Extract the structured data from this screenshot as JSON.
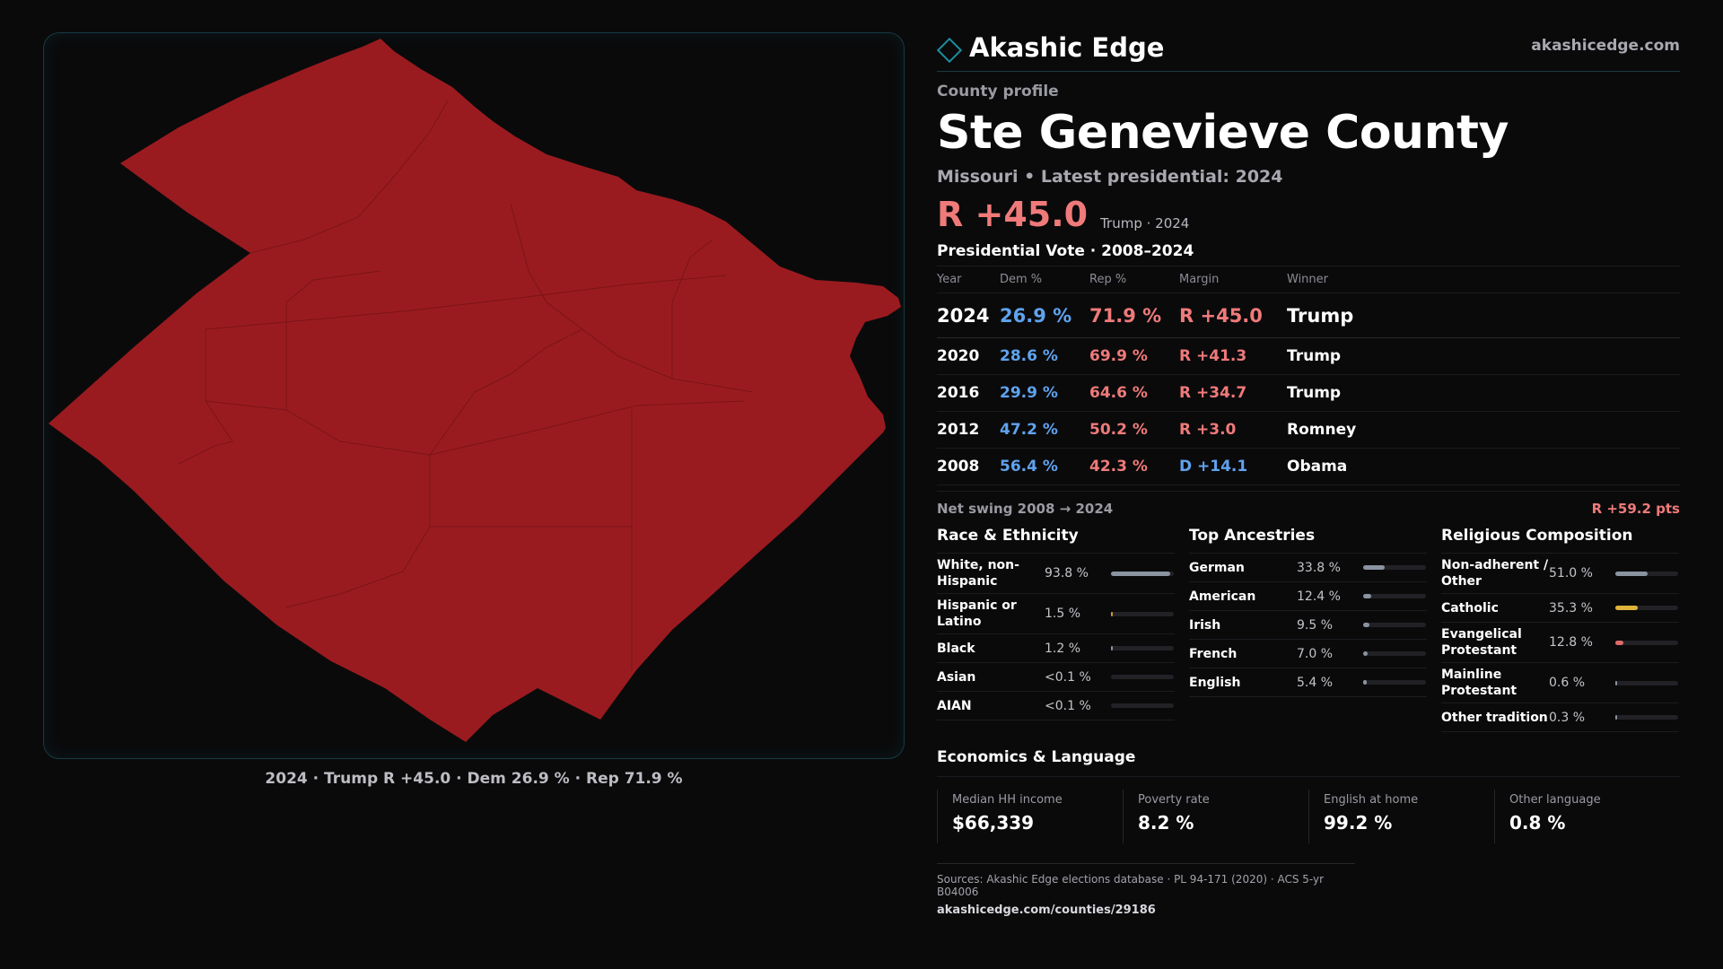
{
  "brand": {
    "name": "Akashic Edge",
    "url": "akashicedge.com",
    "icon": "diamond-icon"
  },
  "profile": {
    "eyebrow": "County profile",
    "title": "Ste Genevieve County",
    "subtitle": "Missouri • Latest presidential: 2024",
    "margin": "R +45.0",
    "margin_detail": "Trump · 2024"
  },
  "map": {
    "caption": "2024 · Trump R +45.0 · Dem 26.9 % · Rep 71.9 %",
    "fill_color": "#9a1b1f"
  },
  "votes": {
    "title": "Presidential Vote · 2008–2024",
    "headers": [
      "Year",
      "Dem %",
      "Rep %",
      "Margin",
      "Winner"
    ],
    "rows": [
      {
        "year": "2024",
        "dem": "26.9 %",
        "rep": "71.9 %",
        "margin": "R +45.0",
        "winner": "Trump",
        "party": "R"
      },
      {
        "year": "2020",
        "dem": "28.6 %",
        "rep": "69.9 %",
        "margin": "R +41.3",
        "winner": "Trump",
        "party": "R"
      },
      {
        "year": "2016",
        "dem": "29.9 %",
        "rep": "64.6 %",
        "margin": "R +34.7",
        "winner": "Trump",
        "party": "R"
      },
      {
        "year": "2012",
        "dem": "47.2 %",
        "rep": "50.2 %",
        "margin": "R +3.0",
        "winner": "Romney",
        "party": "R"
      },
      {
        "year": "2008",
        "dem": "56.4 %",
        "rep": "42.3 %",
        "margin": "D +14.1",
        "winner": "Obama",
        "party": "D"
      }
    ],
    "swing_label": "Net swing 2008 → 2024",
    "swing_value": "R +59.2 pts"
  },
  "race": {
    "title": "Race & Ethnicity",
    "items": [
      {
        "label": "White, non-Hispanic",
        "value": "93.8 %",
        "fraction": 0.938,
        "color": "#8a93a0"
      },
      {
        "label": "Hispanic or Latino",
        "value": "1.5 %",
        "fraction": 0.015,
        "color": "#d39a2e"
      },
      {
        "label": "Black",
        "value": "1.2 %",
        "fraction": 0.012,
        "color": "#8a93a0"
      },
      {
        "label": "Asian",
        "value": "<0.1 %",
        "fraction": 0.0,
        "color": "#8a93a0"
      },
      {
        "label": "AIAN",
        "value": "<0.1 %",
        "fraction": 0.0,
        "color": "#8a93a0"
      }
    ]
  },
  "ancestry": {
    "title": "Top Ancestries",
    "items": [
      {
        "label": "German",
        "value": "33.8 %",
        "fraction": 0.338,
        "color": "#8a93a0"
      },
      {
        "label": "American",
        "value": "12.4 %",
        "fraction": 0.124,
        "color": "#8a93a0"
      },
      {
        "label": "Irish",
        "value": "9.5 %",
        "fraction": 0.095,
        "color": "#8a93a0"
      },
      {
        "label": "French",
        "value": "7.0 %",
        "fraction": 0.07,
        "color": "#8a93a0"
      },
      {
        "label": "English",
        "value": "5.4 %",
        "fraction": 0.054,
        "color": "#8a93a0"
      }
    ]
  },
  "religion": {
    "title": "Religious Composition",
    "items": [
      {
        "label": "Non-adherent / Other",
        "value": "51.0 %",
        "fraction": 0.51,
        "color": "#8a93a0"
      },
      {
        "label": "Catholic",
        "value": "35.3 %",
        "fraction": 0.353,
        "color": "#e0b43a"
      },
      {
        "label": "Evangelical Protestant",
        "value": "12.8 %",
        "fraction": 0.128,
        "color": "#e06a6a"
      },
      {
        "label": "Mainline Protestant",
        "value": "0.6 %",
        "fraction": 0.006,
        "color": "#8a93a0"
      },
      {
        "label": "Other tradition",
        "value": "0.3 %",
        "fraction": 0.003,
        "color": "#8a93a0"
      }
    ]
  },
  "economics": {
    "title": "Economics & Language",
    "cells": [
      {
        "label": "Median HH income",
        "value": "$66,339"
      },
      {
        "label": "Poverty rate",
        "value": "8.2 %"
      },
      {
        "label": "English at home",
        "value": "99.2 %"
      },
      {
        "label": "Other language",
        "value": "0.8 %"
      }
    ]
  },
  "sources": {
    "line": "Sources: Akashic Edge elections database · PL 94-171 (2020) · ACS 5-yr B04006",
    "url": "akashicedge.com/counties/29186"
  }
}
